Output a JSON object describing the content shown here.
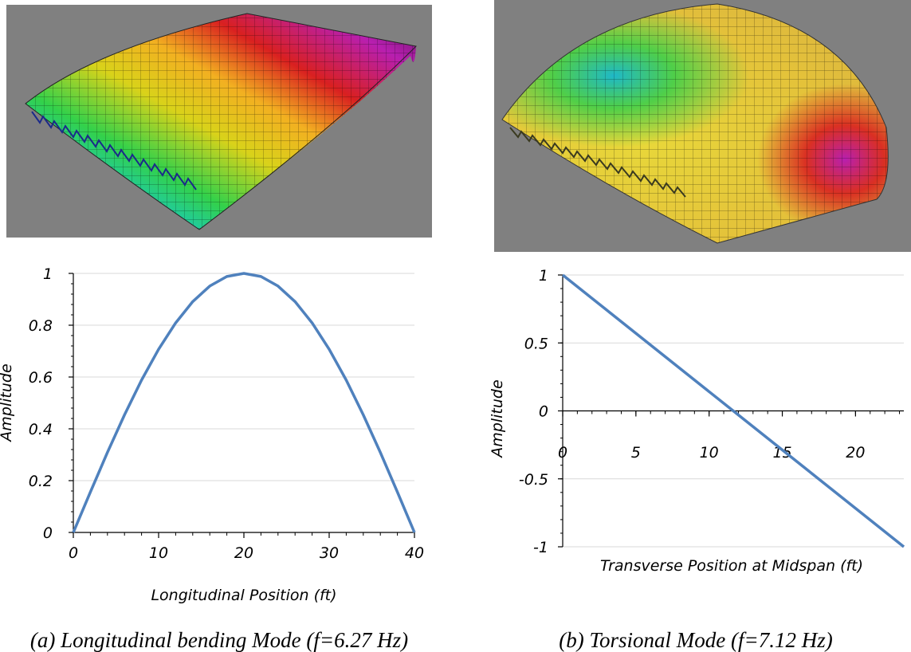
{
  "colors": {
    "render_background": "#808080",
    "series_line": "#4f81bd",
    "grid": "#d9d9d9",
    "mode_shape_palette": [
      "#1f3fd6",
      "#13c7d9",
      "#33d14a",
      "#d9d21a",
      "#f2b021",
      "#d92020",
      "#b81fb0",
      "#5a1a6a"
    ]
  },
  "panels": [
    {
      "caption": "(a) Longitudinal bending Mode (f=6.27 Hz)",
      "render": {
        "description_icon": "longitudinal-bending-mode-render"
      }
    },
    {
      "caption": "(b) Torsional Mode (f=7.12 Hz)",
      "render": {
        "description_icon": "torsional-mode-render"
      }
    }
  ],
  "chart_data": [
    {
      "type": "line",
      "xlabel": "Longitudinal Position (ft)",
      "ylabel": "Amplitude",
      "xlim": [
        0,
        40
      ],
      "ylim": [
        0,
        1
      ],
      "x_ticks": [
        "0",
        "10",
        "20",
        "30",
        "40"
      ],
      "y_ticks": [
        "0",
        "0.2",
        "0.4",
        "0.6",
        "0.8",
        "1"
      ],
      "grid": true,
      "legend": "none",
      "series": [
        {
          "x": [
            0,
            2,
            4,
            6,
            8,
            10,
            12,
            14,
            16,
            18,
            20,
            22,
            24,
            26,
            28,
            30,
            32,
            34,
            36,
            38,
            40
          ],
          "y": [
            0,
            0.156,
            0.309,
            0.454,
            0.588,
            0.707,
            0.809,
            0.891,
            0.951,
            0.988,
            1,
            0.988,
            0.951,
            0.891,
            0.809,
            0.707,
            0.588,
            0.454,
            0.309,
            0.156,
            0
          ]
        }
      ]
    },
    {
      "type": "line",
      "xlabel": "Transverse Position at Midspan (ft)",
      "ylabel": "Amplitude",
      "xlim": [
        0,
        23.3
      ],
      "ylim": [
        -1,
        1
      ],
      "x_ticks": [
        "0",
        "5",
        "10",
        "15",
        "20"
      ],
      "y_ticks": [
        "-1",
        "-0.5",
        "0",
        "0.5",
        "1"
      ],
      "grid": true,
      "legend": "none",
      "series": [
        {
          "x": [
            0,
            23.3
          ],
          "y": [
            1,
            -1
          ]
        }
      ]
    }
  ]
}
